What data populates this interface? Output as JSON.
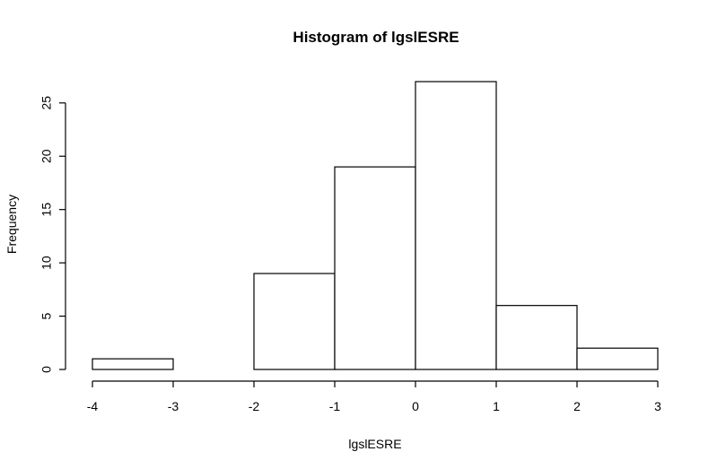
{
  "chart_data": {
    "type": "bar",
    "title": "Histogram of lgslESRE",
    "xlabel": "lgslESRE",
    "ylabel": "Frequency",
    "bins": [
      {
        "x0": -4,
        "x1": -3,
        "value": 1
      },
      {
        "x0": -3,
        "x1": -2,
        "value": 0
      },
      {
        "x0": -2,
        "x1": -1,
        "value": 9
      },
      {
        "x0": -1,
        "x1": 0,
        "value": 19
      },
      {
        "x0": 0,
        "x1": 1,
        "value": 27
      },
      {
        "x0": 1,
        "x1": 2,
        "value": 6
      },
      {
        "x0": 2,
        "x1": 3,
        "value": 2
      }
    ],
    "xlim": [
      -4,
      3
    ],
    "ylim": [
      0,
      27
    ],
    "xticks": [
      -4,
      -3,
      -2,
      -1,
      0,
      1,
      2,
      3
    ],
    "xtick_labels": [
      "-4",
      "-3",
      "-2",
      "-1",
      "0",
      "1",
      "2",
      "3"
    ],
    "yticks": [
      0,
      5,
      10,
      15,
      20,
      25
    ],
    "ytick_labels": [
      "0",
      "5",
      "10",
      "15",
      "20",
      "25"
    ],
    "grid": false
  }
}
